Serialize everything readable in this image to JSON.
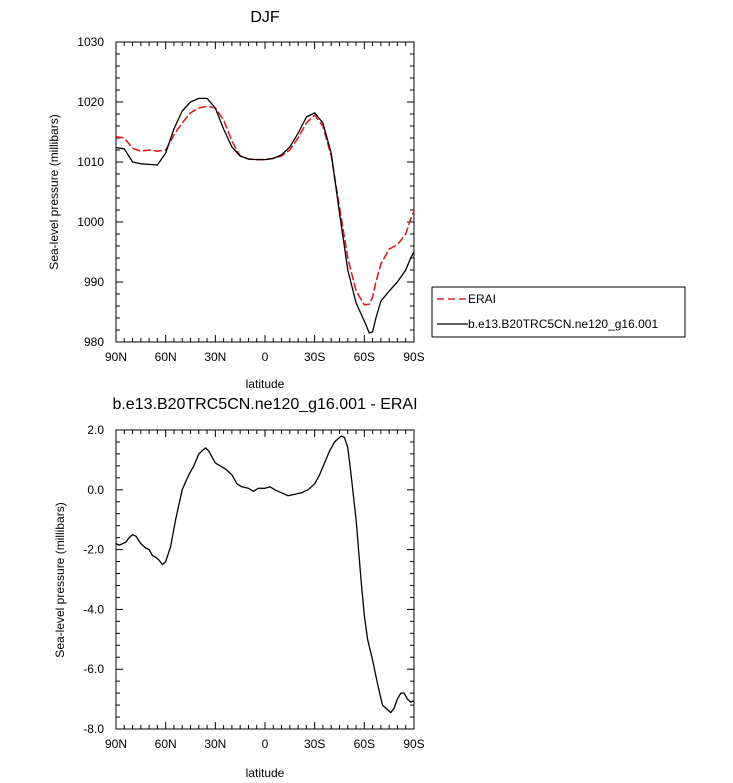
{
  "chart_data": [
    {
      "type": "line",
      "title": "DJF",
      "xlabel": "latitude",
      "ylabel": "Sea-level pressure (millibars)",
      "xlim": [
        90,
        -90
      ],
      "ylim": [
        980,
        1030
      ],
      "x_ticks": [
        {
          "value": 90,
          "label": "90N"
        },
        {
          "value": 60,
          "label": "60N"
        },
        {
          "value": 30,
          "label": "30N"
        },
        {
          "value": 0,
          "label": "0"
        },
        {
          "value": -30,
          "label": "30S"
        },
        {
          "value": -60,
          "label": "60S"
        },
        {
          "value": -90,
          "label": "90S"
        }
      ],
      "y_ticks": [
        {
          "value": 980,
          "label": "980"
        },
        {
          "value": 990,
          "label": "990"
        },
        {
          "value": 1000,
          "label": "1000"
        },
        {
          "value": 1010,
          "label": "1010"
        },
        {
          "value": 1020,
          "label": "1020"
        },
        {
          "value": 1030,
          "label": "1030"
        }
      ],
      "legend": "right",
      "series": [
        {
          "name": "ERAI",
          "color": "#e02020",
          "dash": true,
          "x": [
            90,
            85,
            80,
            75,
            70,
            65,
            60,
            55,
            50,
            45,
            40,
            35,
            30,
            25,
            20,
            15,
            10,
            5,
            0,
            -5,
            -10,
            -15,
            -20,
            -25,
            -30,
            -35,
            -40,
            -45,
            -50,
            -55,
            -60,
            -63,
            -65,
            -67,
            -70,
            -75,
            -80,
            -85,
            -88,
            -90
          ],
          "values": [
            1014.2,
            1014.0,
            1012.3,
            1011.8,
            1012.0,
            1011.8,
            1012.0,
            1014.5,
            1016.5,
            1018.2,
            1019.0,
            1019.3,
            1019.0,
            1017.0,
            1013.5,
            1011.0,
            1010.5,
            1010.4,
            1010.4,
            1010.6,
            1011.0,
            1012.0,
            1014.0,
            1016.5,
            1017.8,
            1016.0,
            1011.0,
            1002.5,
            994.0,
            988.5,
            986.2,
            986.3,
            987.5,
            990.0,
            993.0,
            995.5,
            996.2,
            998.0,
            1000.5,
            1001.8
          ]
        },
        {
          "name": "b.e13.B20TRC5CN.ne120_g16.001",
          "color": "#000000",
          "dash": false,
          "x": [
            90,
            85,
            80,
            75,
            70,
            65,
            60,
            55,
            50,
            45,
            40,
            35,
            30,
            25,
            20,
            15,
            10,
            5,
            0,
            -5,
            -10,
            -15,
            -20,
            -25,
            -30,
            -35,
            -40,
            -45,
            -50,
            -55,
            -60,
            -63,
            -65,
            -67,
            -70,
            -75,
            -80,
            -85,
            -88,
            -90
          ],
          "values": [
            1012.4,
            1012.2,
            1010.0,
            1009.7,
            1009.6,
            1009.5,
            1011.5,
            1015.5,
            1018.5,
            1020.0,
            1020.6,
            1020.6,
            1019.0,
            1015.5,
            1012.5,
            1011.0,
            1010.5,
            1010.4,
            1010.4,
            1010.6,
            1011.2,
            1012.5,
            1014.8,
            1017.5,
            1018.2,
            1016.5,
            1011.5,
            1001.5,
            992.0,
            986.5,
            983.5,
            981.5,
            981.7,
            984.0,
            986.8,
            988.5,
            990.0,
            992.0,
            994.0,
            995.0
          ]
        }
      ]
    },
    {
      "type": "line",
      "title": "b.e13.B20TRC5CN.ne120_g16.001 - ERAI",
      "xlabel": "latitude",
      "ylabel": "Sea-level pressure (millibars)",
      "xlim": [
        90,
        -90
      ],
      "ylim": [
        -8.0,
        2.0
      ],
      "x_ticks": [
        {
          "value": 90,
          "label": "90N"
        },
        {
          "value": 60,
          "label": "60N"
        },
        {
          "value": 30,
          "label": "30N"
        },
        {
          "value": 0,
          "label": "0"
        },
        {
          "value": -30,
          "label": "30S"
        },
        {
          "value": -60,
          "label": "60S"
        },
        {
          "value": -90,
          "label": "90S"
        }
      ],
      "y_ticks": [
        {
          "value": 2.0,
          "label": "2.0"
        },
        {
          "value": 0.0,
          "label": "0.0"
        },
        {
          "value": -2.0,
          "label": "-2.0"
        },
        {
          "value": -4.0,
          "label": "-4.0"
        },
        {
          "value": -6.0,
          "label": "-6.0"
        },
        {
          "value": -8.0,
          "label": "-8.0"
        }
      ],
      "series": [
        {
          "color": "#000000",
          "dash": false,
          "x": [
            90,
            88,
            86,
            84,
            82,
            80,
            78,
            75,
            72,
            70,
            68,
            66,
            64,
            62,
            60,
            57,
            54,
            50,
            46,
            43,
            40,
            38,
            36,
            34,
            32,
            30,
            27,
            24,
            20,
            17,
            14,
            10,
            7,
            4,
            0,
            -3,
            -6,
            -10,
            -14,
            -18,
            -22,
            -26,
            -30,
            -33,
            -36,
            -39,
            -42,
            -44,
            -46,
            -48,
            -50,
            -52,
            -55,
            -58,
            -60,
            -62,
            -65,
            -68,
            -71,
            -74,
            -76,
            -78,
            -80,
            -82,
            -84,
            -86,
            -88,
            -90
          ],
          "values": [
            -1.8,
            -1.85,
            -1.8,
            -1.75,
            -1.6,
            -1.5,
            -1.55,
            -1.8,
            -1.95,
            -2.0,
            -2.2,
            -2.25,
            -2.35,
            -2.5,
            -2.4,
            -1.9,
            -1.0,
            0.0,
            0.5,
            0.8,
            1.2,
            1.3,
            1.4,
            1.3,
            1.1,
            0.9,
            0.8,
            0.7,
            0.5,
            0.2,
            0.1,
            0.05,
            -0.05,
            0.05,
            0.05,
            0.1,
            0.0,
            -0.1,
            -0.2,
            -0.15,
            -0.1,
            0.0,
            0.2,
            0.5,
            0.9,
            1.3,
            1.6,
            1.7,
            1.8,
            1.75,
            1.4,
            0.5,
            -1.0,
            -3.0,
            -4.2,
            -5.0,
            -5.7,
            -6.5,
            -7.2,
            -7.35,
            -7.45,
            -7.3,
            -7.0,
            -6.8,
            -6.8,
            -7.0,
            -7.1,
            -7.05
          ]
        }
      ]
    }
  ]
}
